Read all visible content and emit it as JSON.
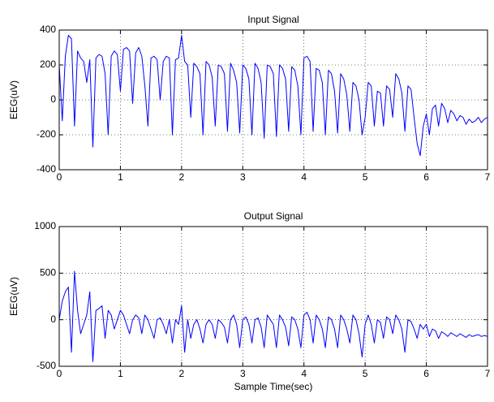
{
  "chart_data": [
    {
      "type": "line",
      "title": "Input Signal",
      "ylabel": "EEG(uV)",
      "x": [
        0,
        0.05,
        0.1,
        0.15,
        0.2,
        0.25,
        0.3,
        0.35,
        0.4,
        0.45,
        0.5,
        0.55,
        0.6,
        0.65,
        0.7,
        0.75,
        0.8,
        0.85,
        0.9,
        0.95,
        1,
        1.05,
        1.1,
        1.15,
        1.2,
        1.25,
        1.3,
        1.35,
        1.4,
        1.45,
        1.5,
        1.55,
        1.6,
        1.65,
        1.7,
        1.75,
        1.8,
        1.85,
        1.9,
        1.95,
        2,
        2.05,
        2.1,
        2.15,
        2.2,
        2.25,
        2.3,
        2.35,
        2.4,
        2.45,
        2.5,
        2.55,
        2.6,
        2.65,
        2.7,
        2.75,
        2.8,
        2.85,
        2.9,
        2.95,
        3,
        3.05,
        3.1,
        3.15,
        3.2,
        3.25,
        3.3,
        3.35,
        3.4,
        3.45,
        3.5,
        3.55,
        3.6,
        3.65,
        3.7,
        3.75,
        3.8,
        3.85,
        3.9,
        3.95,
        4,
        4.05,
        4.1,
        4.15,
        4.2,
        4.25,
        4.3,
        4.35,
        4.4,
        4.45,
        4.5,
        4.55,
        4.6,
        4.65,
        4.7,
        4.75,
        4.8,
        4.85,
        4.9,
        4.95,
        5,
        5.05,
        5.1,
        5.15,
        5.2,
        5.25,
        5.3,
        5.35,
        5.4,
        5.45,
        5.5,
        5.55,
        5.6,
        5.65,
        5.7,
        5.75,
        5.8,
        5.85,
        5.9,
        5.95,
        6,
        6.05,
        6.1,
        6.15,
        6.2,
        6.25,
        6.3,
        6.35,
        6.4,
        6.45,
        6.5,
        6.55,
        6.6,
        6.65,
        6.7,
        6.75,
        6.8,
        6.85,
        6.9,
        6.95,
        7
      ],
      "series": [
        {
          "color": "#0000ff",
          "values": [
            200,
            -120,
            250,
            370,
            350,
            -150,
            280,
            240,
            220,
            100,
            230,
            -270,
            240,
            260,
            250,
            150,
            -200,
            250,
            280,
            260,
            50,
            290,
            300,
            280,
            -20,
            270,
            300,
            250,
            80,
            -150,
            240,
            250,
            230,
            0,
            220,
            250,
            240,
            -200,
            230,
            240,
            370,
            220,
            200,
            -100,
            210,
            190,
            150,
            -200,
            220,
            200,
            130,
            -150,
            200,
            190,
            150,
            -180,
            210,
            170,
            100,
            -190,
            200,
            180,
            120,
            -200,
            210,
            180,
            100,
            -220,
            200,
            190,
            150,
            -210,
            200,
            180,
            120,
            -180,
            190,
            170,
            80,
            -200,
            240,
            250,
            220,
            -180,
            180,
            170,
            100,
            -200,
            170,
            150,
            50,
            -190,
            150,
            120,
            30,
            -180,
            100,
            80,
            0,
            -200,
            -100,
            100,
            80,
            -150,
            50,
            40,
            -150,
            80,
            60,
            -100,
            150,
            120,
            40,
            -180,
            80,
            60,
            -100,
            -250,
            -320,
            -150,
            -80,
            -200,
            -50,
            -30,
            -150,
            -20,
            -50,
            -130,
            -60,
            -80,
            -120,
            -90,
            -100,
            -140,
            -110,
            -130,
            -120,
            -100,
            -130,
            -110,
            -100
          ]
        }
      ],
      "xlim": [
        0,
        7
      ],
      "xticks": [
        0,
        1,
        2,
        3,
        4,
        5,
        6,
        7
      ],
      "ylim": [
        -400,
        400
      ],
      "yticks": [
        -400,
        -200,
        0,
        200,
        400
      ],
      "grid": true
    },
    {
      "type": "line",
      "title": "Output Signal",
      "xlabel": "Sample Time(sec)",
      "ylabel": "EEG(uV)",
      "x": [
        0,
        0.05,
        0.1,
        0.15,
        0.2,
        0.25,
        0.3,
        0.35,
        0.4,
        0.45,
        0.5,
        0.55,
        0.6,
        0.65,
        0.7,
        0.75,
        0.8,
        0.85,
        0.9,
        0.95,
        1,
        1.05,
        1.1,
        1.15,
        1.2,
        1.25,
        1.3,
        1.35,
        1.4,
        1.45,
        1.5,
        1.55,
        1.6,
        1.65,
        1.7,
        1.75,
        1.8,
        1.85,
        1.9,
        1.95,
        2,
        2.05,
        2.1,
        2.15,
        2.2,
        2.25,
        2.3,
        2.35,
        2.4,
        2.45,
        2.5,
        2.55,
        2.6,
        2.65,
        2.7,
        2.75,
        2.8,
        2.85,
        2.9,
        2.95,
        3,
        3.05,
        3.1,
        3.15,
        3.2,
        3.25,
        3.3,
        3.35,
        3.4,
        3.45,
        3.5,
        3.55,
        3.6,
        3.65,
        3.7,
        3.75,
        3.8,
        3.85,
        3.9,
        3.95,
        4,
        4.05,
        4.1,
        4.15,
        4.2,
        4.25,
        4.3,
        4.35,
        4.4,
        4.45,
        4.5,
        4.55,
        4.6,
        4.65,
        4.7,
        4.75,
        4.8,
        4.85,
        4.9,
        4.95,
        5,
        5.05,
        5.1,
        5.15,
        5.2,
        5.25,
        5.3,
        5.35,
        5.4,
        5.45,
        5.5,
        5.55,
        5.6,
        5.65,
        5.7,
        5.75,
        5.8,
        5.85,
        5.9,
        5.95,
        6,
        6.05,
        6.1,
        6.15,
        6.2,
        6.25,
        6.3,
        6.35,
        6.4,
        6.45,
        6.5,
        6.55,
        6.6,
        6.65,
        6.7,
        6.75,
        6.8,
        6.85,
        6.9,
        6.95,
        7
      ],
      "series": [
        {
          "color": "#0000ff",
          "values": [
            0,
            200,
            300,
            350,
            -350,
            520,
            100,
            -150,
            -50,
            50,
            300,
            -450,
            100,
            120,
            150,
            -200,
            100,
            50,
            -100,
            0,
            100,
            50,
            -50,
            -150,
            0,
            50,
            20,
            -150,
            50,
            0,
            -100,
            -200,
            0,
            20,
            -50,
            -150,
            0,
            -250,
            0,
            -50,
            150,
            -350,
            0,
            -200,
            -50,
            0,
            -100,
            -250,
            -50,
            0,
            -50,
            -200,
            0,
            -30,
            -80,
            -250,
            0,
            50,
            -50,
            -300,
            0,
            30,
            -50,
            -250,
            0,
            20,
            -80,
            -300,
            50,
            0,
            -50,
            -300,
            50,
            0,
            -80,
            -280,
            30,
            0,
            -100,
            -300,
            50,
            80,
            0,
            -250,
            50,
            0,
            -100,
            -300,
            30,
            0,
            -100,
            -300,
            50,
            0,
            -100,
            -250,
            50,
            0,
            -150,
            -400,
            -50,
            50,
            -50,
            -250,
            0,
            -30,
            -200,
            30,
            0,
            -150,
            50,
            0,
            -100,
            -350,
            0,
            -20,
            -100,
            -200,
            -50,
            -100,
            -50,
            -180,
            -100,
            -120,
            -200,
            -130,
            -150,
            -180,
            -140,
            -160,
            -180,
            -150,
            -170,
            -190,
            -160,
            -180,
            -170,
            -160,
            -180,
            -170,
            -180
          ]
        }
      ],
      "xlim": [
        0,
        7
      ],
      "xticks": [
        0,
        1,
        2,
        3,
        4,
        5,
        6,
        7
      ],
      "ylim": [
        -500,
        1000
      ],
      "yticks": [
        -500,
        0,
        500,
        1000
      ],
      "grid": true
    }
  ]
}
